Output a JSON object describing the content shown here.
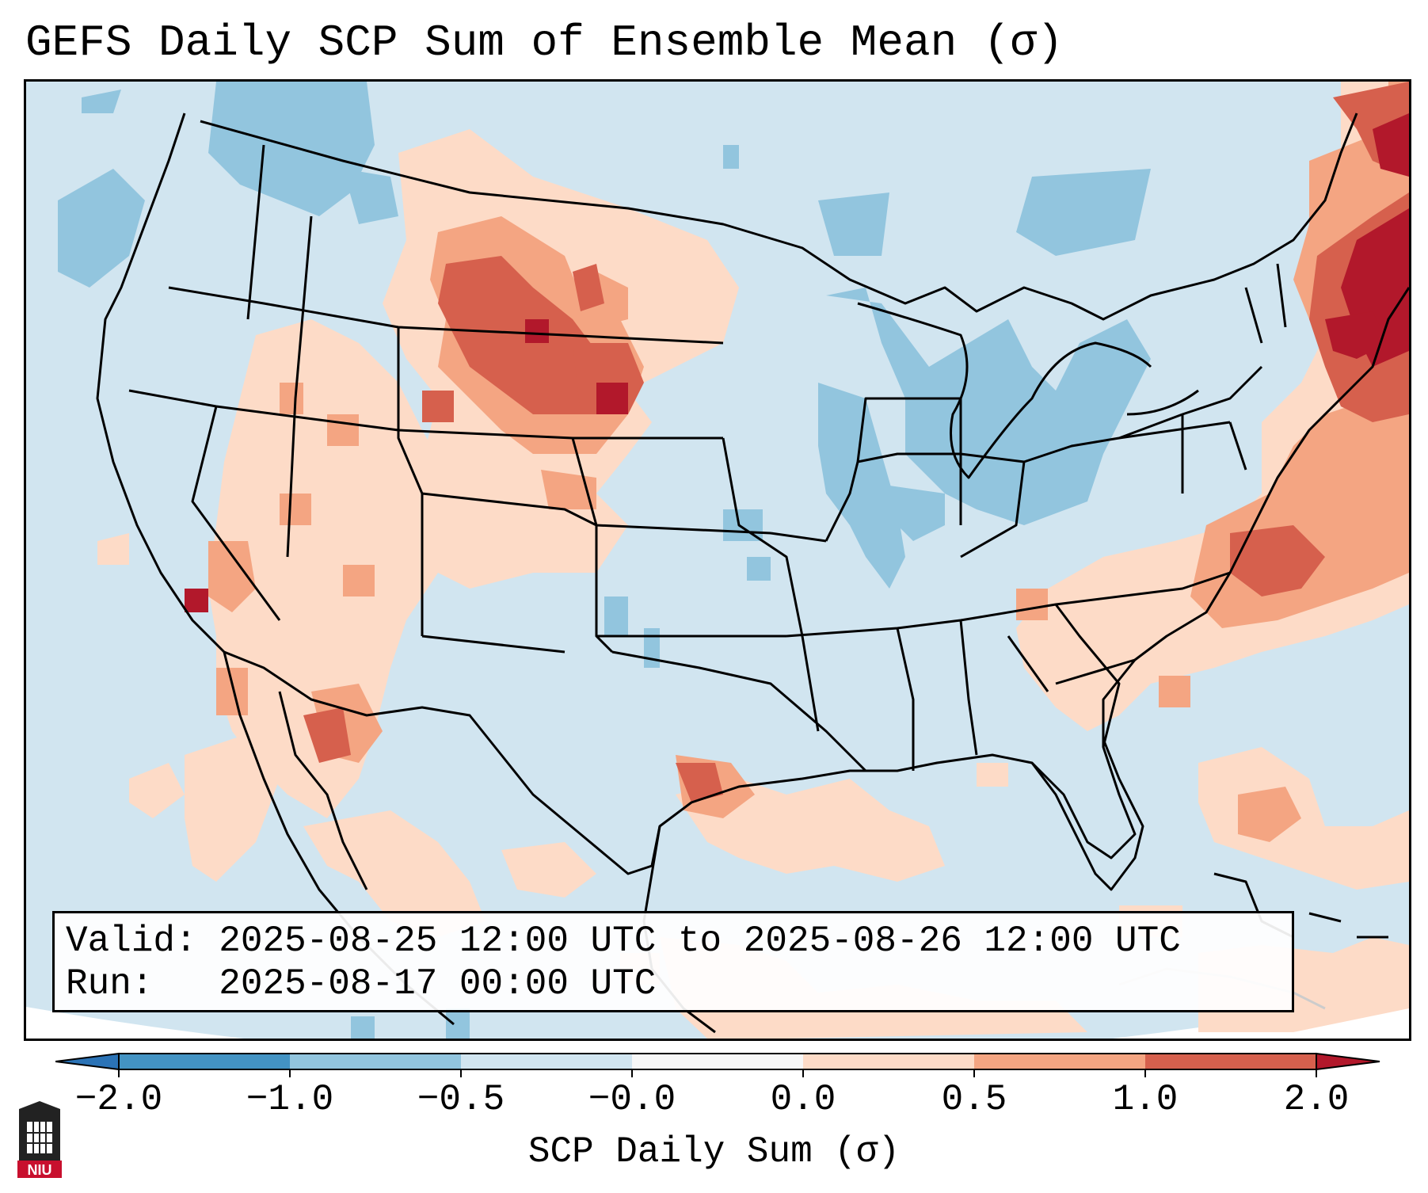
{
  "title": "GEFS Daily SCP Sum of Ensemble Mean (σ)",
  "info": {
    "valid_label": "Valid:",
    "valid_value": "2025-08-25 12:00 UTC to 2025-08-26 12:00 UTC",
    "run_label": "Run:",
    "run_value": "2025-08-17 00:00 UTC"
  },
  "colorbar": {
    "label": "SCP Daily Sum (σ)",
    "ticks": [
      "−2.0",
      "−1.0",
      "−0.5",
      "−0.0",
      "0.0",
      "0.5",
      "1.0",
      "2.0"
    ],
    "colors": {
      "below_min": "#2b73b6",
      "neg_2_to_1": "#4393c3",
      "neg_1_to_05": "#92c5de",
      "neg_05_to_0": "#d1e5f0",
      "zero": "#f7f7f7",
      "pos_0_to_05": "#fddbc7",
      "pos_05_to_1": "#f4a582",
      "pos_1_to_2": "#d6604d",
      "above_max": "#b2182b"
    }
  },
  "logo": {
    "text": "NIU",
    "color": "#c8102e"
  },
  "map": {
    "region": "Contiguous United States",
    "background_color": "#d1e5f0",
    "outline_color": "#000000"
  }
}
